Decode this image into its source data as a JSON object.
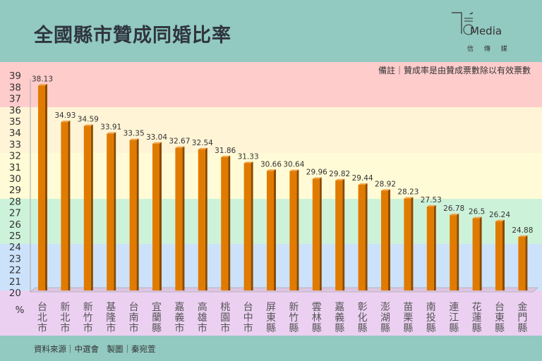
{
  "header": {
    "title": "全國縣市贊成同婚比率",
    "logo_text": "Media",
    "logo_subtitle": "信 傳 媒"
  },
  "note": "備註｜贊成率是由贊成票數除以有效票數",
  "footer": "資料來源｜中選會　製圖｜秦宛萱",
  "colors": {
    "bar": "#e07b00",
    "bar_side": "#8a4a00",
    "header_bg": "#92c9c0",
    "band_pink": "#ffcccc",
    "band_yellow1": "#fff4d6",
    "band_yellow2": "#fffbd6",
    "band_green": "#cdf2da",
    "band_blue": "#cce2fb",
    "band_lavender": "#ecd0f2"
  },
  "chart_data": {
    "type": "bar",
    "title": "全國縣市贊成同婚比率",
    "xlabel": "",
    "ylabel": "%",
    "ylim": [
      20,
      39
    ],
    "yticks": [
      "20",
      "21",
      "22",
      "23",
      "24",
      "25",
      "26",
      "27",
      "28",
      "29",
      "30",
      "31",
      "32",
      "33",
      "34",
      "35",
      "36",
      "37",
      "38",
      "39"
    ],
    "categories": [
      "台北市",
      "新北市",
      "新竹市",
      "基隆市",
      "台南市",
      "宜蘭縣",
      "嘉義市",
      "高雄市",
      "桃園市",
      "台中市",
      "屏東縣",
      "新竹縣",
      "雲林縣",
      "嘉義縣",
      "彰化縣",
      "澎湖縣",
      "苗栗縣",
      "南投縣",
      "連江縣",
      "花蓮縣",
      "台東縣",
      "金門縣"
    ],
    "values": [
      38.13,
      34.93,
      34.59,
      33.91,
      33.35,
      33.04,
      32.67,
      32.54,
      31.86,
      31.33,
      30.66,
      30.64,
      29.96,
      29.82,
      29.44,
      28.92,
      28.23,
      27.53,
      26.78,
      26.5,
      26.24,
      24.88
    ],
    "value_labels": [
      "38.13",
      "34.93",
      "34.59",
      "33.91",
      "33.35",
      "33.04",
      "32.67",
      "32.54",
      "31.86",
      "31.33",
      "30.66",
      "30.64",
      "29.96",
      "29.82",
      "29.44",
      "28.92",
      "28.23",
      "27.53",
      "26.78",
      "26.5",
      "26.24",
      "24.88"
    ],
    "grid": false,
    "legend": "none"
  }
}
